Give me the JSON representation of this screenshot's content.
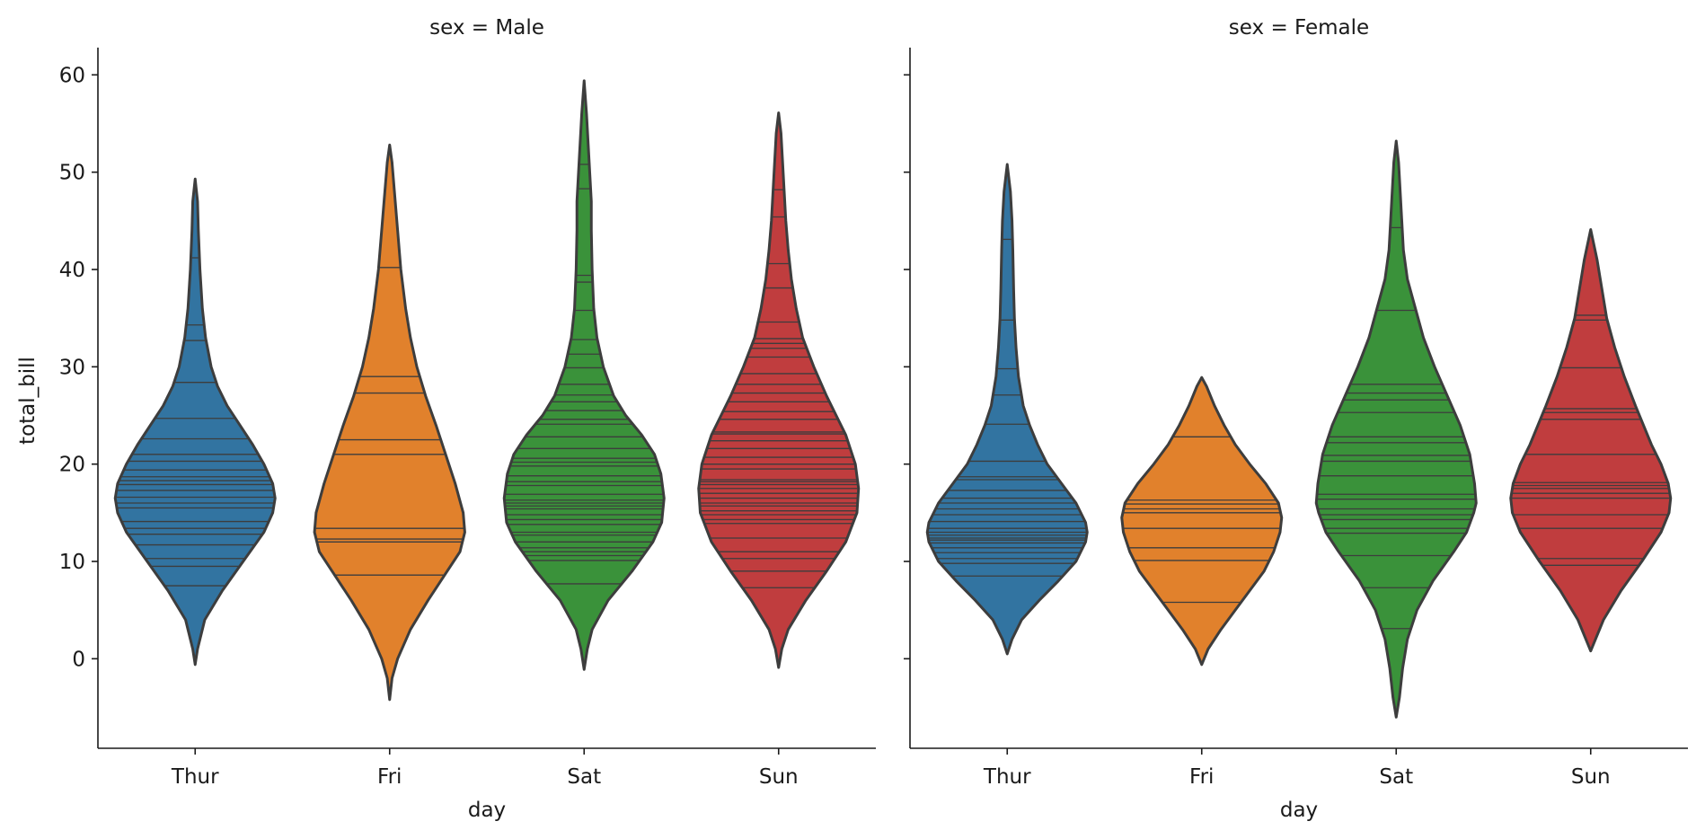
{
  "chart_data": [
    {
      "type": "violin",
      "title": "sex = Male",
      "xlabel": "day",
      "ylabel": "total_bill",
      "ylim": [
        -9.2,
        62.8
      ],
      "yticks": [
        0,
        10,
        20,
        30,
        40,
        50,
        60
      ],
      "categories": [
        "Thur",
        "Fri",
        "Sat",
        "Sun"
      ],
      "colors": {
        "Thur": "#3274a1",
        "Fri": "#e1812c",
        "Sat": "#3a923a",
        "Sun": "#c03d3e"
      },
      "inner": "stick",
      "violins": [
        {
          "category": "Thur",
          "min": -0.6,
          "max": 49.3,
          "widest_at": 16.5,
          "profile": [
            [
              -0.6,
              0
            ],
            [
              1,
              0.03
            ],
            [
              4,
              0.12
            ],
            [
              7,
              0.34
            ],
            [
              10,
              0.6
            ],
            [
              13,
              0.86
            ],
            [
              15,
              0.97
            ],
            [
              16.5,
              1
            ],
            [
              18,
              0.97
            ],
            [
              20,
              0.86
            ],
            [
              22,
              0.72
            ],
            [
              24,
              0.56
            ],
            [
              26,
              0.4
            ],
            [
              28,
              0.28
            ],
            [
              30,
              0.2
            ],
            [
              33,
              0.13
            ],
            [
              36,
              0.09
            ],
            [
              40,
              0.06
            ],
            [
              44,
              0.04
            ],
            [
              47,
              0.03
            ],
            [
              49.3,
              0
            ]
          ],
          "sticks": [
            7.5,
            9.5,
            10.3,
            11.7,
            12.8,
            13.4,
            14.1,
            15.5,
            16.0,
            16.6,
            17.3,
            17.9,
            18.3,
            18.7,
            19.4,
            20.3,
            21.0,
            22.6,
            24.7,
            28.4,
            32.7,
            34.3,
            41.2
          ]
        },
        {
          "category": "Fri",
          "min": -4.2,
          "max": 52.8,
          "widest_at": 13,
          "profile": [
            [
              -4.2,
              0
            ],
            [
              -2,
              0.03
            ],
            [
              0,
              0.1
            ],
            [
              3,
              0.26
            ],
            [
              6,
              0.48
            ],
            [
              9,
              0.72
            ],
            [
              11,
              0.88
            ],
            [
              13,
              0.94
            ],
            [
              15,
              0.92
            ],
            [
              18,
              0.82
            ],
            [
              21,
              0.7
            ],
            [
              24,
              0.58
            ],
            [
              27,
              0.45
            ],
            [
              30,
              0.34
            ],
            [
              33,
              0.26
            ],
            [
              36,
              0.2
            ],
            [
              40,
              0.14
            ],
            [
              44,
              0.1
            ],
            [
              48,
              0.06
            ],
            [
              51,
              0.03
            ],
            [
              52.8,
              0
            ]
          ],
          "sticks": [
            8.6,
            12.0,
            12.3,
            13.4,
            21.0,
            22.5,
            27.3,
            29.0,
            40.2
          ]
        },
        {
          "category": "Sat",
          "min": -1.1,
          "max": 59.4,
          "widest_at": 16.5,
          "profile": [
            [
              -1.1,
              0
            ],
            [
              1,
              0.04
            ],
            [
              3,
              0.1
            ],
            [
              6,
              0.3
            ],
            [
              9,
              0.6
            ],
            [
              12,
              0.86
            ],
            [
              14,
              0.97
            ],
            [
              16.5,
              1
            ],
            [
              19,
              0.96
            ],
            [
              21,
              0.88
            ],
            [
              23,
              0.72
            ],
            [
              25,
              0.52
            ],
            [
              27,
              0.37
            ],
            [
              30,
              0.24
            ],
            [
              33,
              0.16
            ],
            [
              36,
              0.12
            ],
            [
              40,
              0.1
            ],
            [
              44,
              0.09
            ],
            [
              47,
              0.09
            ],
            [
              50,
              0.07
            ],
            [
              53,
              0.05
            ],
            [
              56,
              0.03
            ],
            [
              59.4,
              0
            ]
          ],
          "sticks": [
            7.7,
            10.1,
            10.6,
            11.0,
            11.4,
            12.0,
            12.7,
            13.0,
            13.8,
            14.3,
            14.8,
            15.4,
            15.7,
            16.0,
            16.3,
            16.9,
            17.8,
            18.2,
            18.8,
            19.8,
            20.2,
            20.6,
            21.6,
            22.8,
            24.1,
            24.6,
            25.5,
            26.4,
            27.1,
            28.2,
            29.9,
            31.3,
            32.8,
            35.8,
            38.7,
            39.4,
            48.3,
            50.8
          ]
        },
        {
          "category": "Sun",
          "min": -0.9,
          "max": 56.1,
          "widest_at": 17.5,
          "profile": [
            [
              -0.9,
              0
            ],
            [
              1,
              0.04
            ],
            [
              3,
              0.12
            ],
            [
              6,
              0.34
            ],
            [
              9,
              0.6
            ],
            [
              12,
              0.84
            ],
            [
              15,
              0.98
            ],
            [
              17.5,
              1
            ],
            [
              20,
              0.96
            ],
            [
              23,
              0.84
            ],
            [
              25,
              0.72
            ],
            [
              27,
              0.6
            ],
            [
              30,
              0.44
            ],
            [
              33,
              0.3
            ],
            [
              36,
              0.22
            ],
            [
              39,
              0.16
            ],
            [
              42,
              0.12
            ],
            [
              45,
              0.09
            ],
            [
              48,
              0.07
            ],
            [
              51,
              0.05
            ],
            [
              54,
              0.03
            ],
            [
              56.1,
              0
            ]
          ],
          "sticks": [
            7.3,
            9.0,
            10.3,
            11.0,
            12.4,
            13.9,
            14.3,
            14.8,
            15.2,
            15.7,
            16.0,
            16.5,
            17.0,
            17.5,
            17.9,
            18.2,
            18.4,
            19.5,
            20.0,
            20.7,
            21.6,
            22.4,
            23.1,
            23.3,
            24.6,
            25.4,
            26.4,
            27.3,
            28.2,
            29.3,
            31.0,
            31.9,
            32.4,
            32.9,
            34.6,
            38.1,
            40.6,
            45.4,
            48.2
          ]
        }
      ]
    },
    {
      "type": "violin",
      "title": "sex = Female",
      "xlabel": "day",
      "ylabel": "",
      "ylim": [
        -9.2,
        62.8
      ],
      "yticks": [
        0,
        10,
        20,
        30,
        40,
        50,
        60
      ],
      "categories": [
        "Thur",
        "Fri",
        "Sat",
        "Sun"
      ],
      "colors": {
        "Thur": "#3274a1",
        "Fri": "#e1812c",
        "Sat": "#3a923a",
        "Sun": "#c03d3e"
      },
      "inner": "stick",
      "violins": [
        {
          "category": "Thur",
          "min": 0.5,
          "max": 50.8,
          "widest_at": 13,
          "profile": [
            [
              0.5,
              0
            ],
            [
              2,
              0.06
            ],
            [
              4,
              0.18
            ],
            [
              6,
              0.4
            ],
            [
              8,
              0.64
            ],
            [
              10,
              0.86
            ],
            [
              12,
              0.98
            ],
            [
              13,
              1
            ],
            [
              14,
              0.98
            ],
            [
              16,
              0.86
            ],
            [
              18,
              0.68
            ],
            [
              20,
              0.5
            ],
            [
              22,
              0.38
            ],
            [
              24,
              0.28
            ],
            [
              26,
              0.2
            ],
            [
              29,
              0.14
            ],
            [
              32,
              0.11
            ],
            [
              35,
              0.09
            ],
            [
              38,
              0.08
            ],
            [
              42,
              0.07
            ],
            [
              45,
              0.06
            ],
            [
              48,
              0.04
            ],
            [
              50.8,
              0
            ]
          ],
          "sticks": [
            8.5,
            9.8,
            10.3,
            10.9,
            11.4,
            11.9,
            12.2,
            12.4,
            12.7,
            13.0,
            13.4,
            14.1,
            14.8,
            15.4,
            16.0,
            16.5,
            17.3,
            18.4,
            18.7,
            20.3,
            24.1,
            27.1,
            29.8,
            34.8,
            43.1
          ]
        },
        {
          "category": "Fri",
          "min": -0.6,
          "max": 28.9,
          "widest_at": 14.5,
          "profile": [
            [
              -0.6,
              0
            ],
            [
              1,
              0.08
            ],
            [
              3,
              0.24
            ],
            [
              5,
              0.42
            ],
            [
              7,
              0.6
            ],
            [
              9,
              0.78
            ],
            [
              11,
              0.9
            ],
            [
              13,
              0.98
            ],
            [
              14.5,
              1
            ],
            [
              16,
              0.96
            ],
            [
              18,
              0.8
            ],
            [
              20,
              0.6
            ],
            [
              22,
              0.42
            ],
            [
              24,
              0.28
            ],
            [
              26,
              0.16
            ],
            [
              28,
              0.06
            ],
            [
              28.9,
              0
            ]
          ],
          "sticks": [
            5.8,
            10.1,
            11.4,
            13.4,
            15.0,
            15.4,
            15.9,
            16.3,
            22.8
          ]
        },
        {
          "category": "Sat",
          "min": -6.0,
          "max": 53.2,
          "widest_at": 16,
          "profile": [
            [
              -6,
              0
            ],
            [
              -4,
              0.04
            ],
            [
              -1,
              0.08
            ],
            [
              2,
              0.14
            ],
            [
              5,
              0.26
            ],
            [
              8,
              0.46
            ],
            [
              11,
              0.72
            ],
            [
              13,
              0.88
            ],
            [
              15,
              0.97
            ],
            [
              16,
              1
            ],
            [
              18,
              0.98
            ],
            [
              21,
              0.92
            ],
            [
              24,
              0.8
            ],
            [
              27,
              0.64
            ],
            [
              30,
              0.48
            ],
            [
              33,
              0.34
            ],
            [
              36,
              0.24
            ],
            [
              39,
              0.14
            ],
            [
              42,
              0.09
            ],
            [
              45,
              0.07
            ],
            [
              48,
              0.05
            ],
            [
              51,
              0.03
            ],
            [
              53.2,
              0
            ]
          ],
          "sticks": [
            3.1,
            7.3,
            10.6,
            12.9,
            13.4,
            14.3,
            14.8,
            15.4,
            16.4,
            16.9,
            18.8,
            20.3,
            20.9,
            22.2,
            22.8,
            25.3,
            26.6,
            27.3,
            28.2,
            35.8,
            44.3
          ]
        },
        {
          "category": "Sun",
          "min": 0.8,
          "max": 44.1,
          "widest_at": 16.5,
          "profile": [
            [
              0.8,
              0
            ],
            [
              2,
              0.06
            ],
            [
              4,
              0.16
            ],
            [
              7,
              0.38
            ],
            [
              10,
              0.64
            ],
            [
              13,
              0.88
            ],
            [
              15,
              0.98
            ],
            [
              16.5,
              1
            ],
            [
              18,
              0.97
            ],
            [
              20,
              0.88
            ],
            [
              22,
              0.76
            ],
            [
              24,
              0.66
            ],
            [
              26,
              0.56
            ],
            [
              29,
              0.42
            ],
            [
              32,
              0.3
            ],
            [
              35,
              0.2
            ],
            [
              38,
              0.14
            ],
            [
              41,
              0.08
            ],
            [
              44.1,
              0
            ]
          ],
          "sticks": [
            9.6,
            10.3,
            13.4,
            14.8,
            16.5,
            17.0,
            17.5,
            17.8,
            18.1,
            21.0,
            24.6,
            25.3,
            25.7,
            29.9,
            34.8,
            35.3
          ]
        }
      ]
    }
  ]
}
